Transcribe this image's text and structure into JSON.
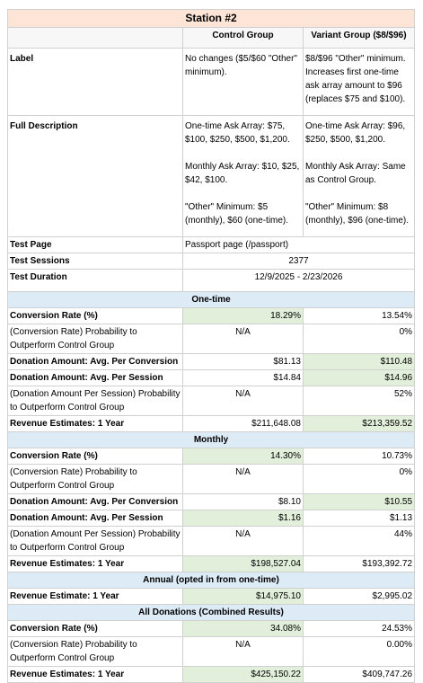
{
  "title": "Station #2",
  "columns": [
    "Control Group",
    "Variant Group ($8/$96)"
  ],
  "info_rows": [
    {
      "label": "Label",
      "control": [
        "No changes ($5/$60 \"Other\" minimum)."
      ],
      "variant": [
        "$8/$96 \"Other\" minimum. Increases first one-time ask array amount to $96 (replaces $75 and $100)."
      ]
    },
    {
      "label": "Full Description",
      "control": [
        "One-time Ask Array: $75, $100, $250, $500, $1,200.",
        "Monthly Ask Array: $10, $25, $42, $100.",
        "\"Other\" Minimum: $5 (monthly), $60 (one-time)."
      ],
      "variant": [
        "One-time Ask Array: $96, $250, $500, $1,200.",
        "Monthly Ask Array: Same as Control Group.",
        "\"Other\" Minimum: $8 (monthly), $96 (one-time)."
      ]
    }
  ],
  "test_rows": [
    {
      "label": "Test Page",
      "value": "Passport page (/passport)"
    },
    {
      "label": "Test Sessions",
      "value": "2377"
    },
    {
      "label": "Test Duration",
      "value": "12/9/2025 - 2/23/2026"
    }
  ],
  "sections": [
    {
      "title": "One-time",
      "rows": [
        {
          "label": "Conversion Rate (%)",
          "control": "18.29%",
          "variant": "13.54%",
          "highlight": "control"
        },
        {
          "label": "(Conversion Rate) Probability to Outperform Control Group",
          "control": "N/A",
          "variant": "0%"
        },
        {
          "label": "Donation Amount: Avg. Per Conversion",
          "control": "$81.13",
          "variant": "$110.48",
          "highlight": "variant"
        },
        {
          "label": "Donation Amount: Avg. Per Session",
          "control": "$14.84",
          "variant": "$14.96",
          "highlight": "variant"
        },
        {
          "label": "(Donation Amount Per Session) Probability to Outperform Control Group",
          "control": "N/A",
          "variant": "52%"
        },
        {
          "label": "Revenue Estimates: 1 Year",
          "control": "$211,648.08",
          "variant": "$213,359.52",
          "highlight": "variant"
        }
      ]
    },
    {
      "title": "Monthly",
      "rows": [
        {
          "label": "Conversion Rate (%)",
          "control": "14.30%",
          "variant": "10.73%",
          "highlight": "control"
        },
        {
          "label": "(Conversion Rate) Probability to Outperform Control Group",
          "control": "N/A",
          "variant": "0%"
        },
        {
          "label": "Donation Amount: Avg. Per Conversion",
          "control": "$8.10",
          "variant": "$10.55",
          "highlight": "variant"
        },
        {
          "label": "Donation Amount: Avg. Per Session",
          "control": "$1.16",
          "variant": "$1.13",
          "highlight": "control"
        },
        {
          "label": "(Donation Amount Per Session) Probability to Outperform Control Group",
          "control": "N/A",
          "variant": "44%"
        },
        {
          "label": "Revenue Estimates: 1 Year",
          "control": "$198,527.04",
          "variant": "$193,392.72",
          "highlight": "control"
        }
      ]
    },
    {
      "title": "Annual (opted in from one-time)",
      "rows": [
        {
          "label": "Revenue Estimate: 1 Year",
          "control": "$14,975.10",
          "variant": "$2,995.02",
          "highlight": "control"
        }
      ]
    },
    {
      "title": "All Donations (Combined Results)",
      "rows": [
        {
          "label": "Conversion Rate (%)",
          "control": "34.08%",
          "variant": "24.53%",
          "highlight": "control"
        },
        {
          "label": "(Conversion Rate) Probability to Outperform Control Group",
          "control": "N/A",
          "variant": "0.00%"
        },
        {
          "label": "Revenue Estimates: 1 Year",
          "control": "$425,150.22",
          "variant": "$409,747.26",
          "highlight": "control"
        }
      ]
    }
  ]
}
